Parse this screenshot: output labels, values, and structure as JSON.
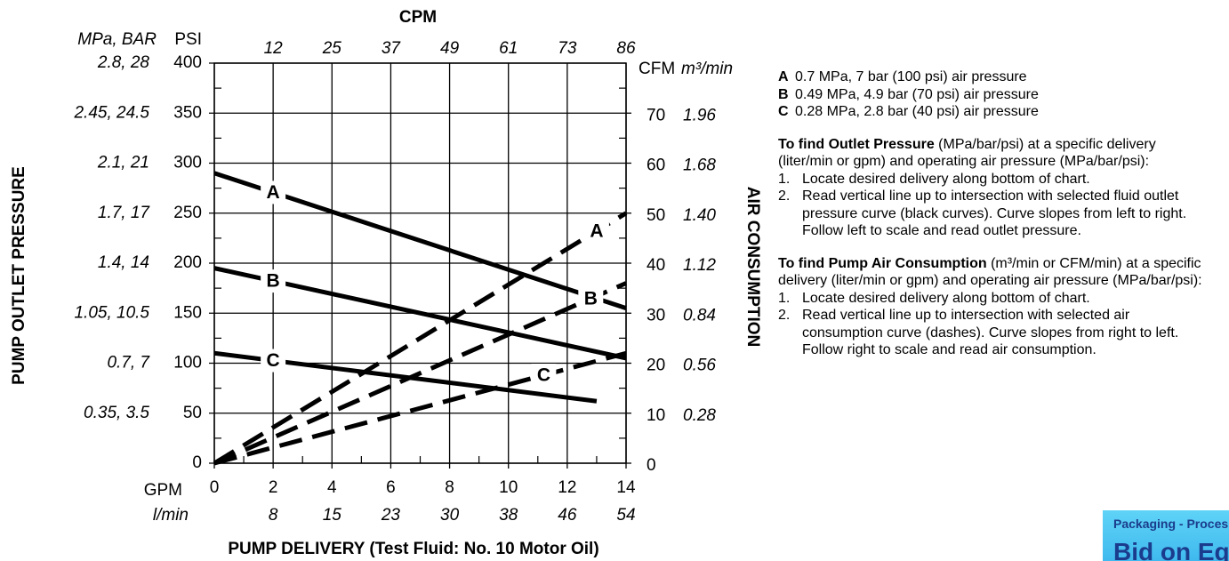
{
  "chart_data": {
    "type": "line",
    "title": "CPM",
    "x_label": "PUMP DELIVERY (Test Fluid: No. 10 Motor Oil)",
    "y_label": "PUMP OUTLET PRESSURE",
    "y2_label": "AIR CONSUMPTION",
    "x_unit": "GPM",
    "x_unit2": "l/min",
    "y_unit": "PSI",
    "y_unit2": "MPa, BAR",
    "y2_unit": "CFM",
    "y2_unit2": "m³/min",
    "xlim": [
      0,
      14
    ],
    "xticks": [
      0,
      2,
      4,
      6,
      8,
      10,
      12,
      14
    ],
    "ylim": [
      0,
      400
    ],
    "yticks": [
      0,
      50,
      100,
      150,
      200,
      250,
      300,
      350,
      400
    ],
    "y2lim": [
      0,
      80
    ],
    "y2ticks": [
      0,
      10,
      20,
      30,
      40,
      50,
      60,
      70
    ],
    "x_top_ticks": [
      {
        "value": 2,
        "label": "12"
      },
      {
        "value": 4,
        "label": "25"
      },
      {
        "value": 6,
        "label": "37"
      },
      {
        "value": 8,
        "label": "49"
      },
      {
        "value": 10,
        "label": "61"
      },
      {
        "value": 12,
        "label": "73"
      },
      {
        "value": 14,
        "label": "86"
      }
    ],
    "x_bottom2_ticks": [
      {
        "value": 2,
        "label": "8"
      },
      {
        "value": 4,
        "label": "15"
      },
      {
        "value": 6,
        "label": "23"
      },
      {
        "value": 8,
        "label": "30"
      },
      {
        "value": 10,
        "label": "38"
      },
      {
        "value": 12,
        "label": "46"
      },
      {
        "value": 14,
        "label": "54"
      }
    ],
    "y_outer_ticks": [
      {
        "value": 50,
        "label": "0.35, 3.5"
      },
      {
        "value": 100,
        "label": "0.7, 7"
      },
      {
        "value": 150,
        "label": "1.05, 10.5"
      },
      {
        "value": 200,
        "label": "1.4, 14"
      },
      {
        "value": 250,
        "label": "1.7, 17"
      },
      {
        "value": 300,
        "label": "2.1, 21"
      },
      {
        "value": 350,
        "label": "2.45, 24.5"
      },
      {
        "value": 400,
        "label": "2.8, 28"
      }
    ],
    "y2_outer_ticks": [
      {
        "value": 10,
        "label": "0.28"
      },
      {
        "value": 20,
        "label": "0.56"
      },
      {
        "value": 30,
        "label": "0.84"
      },
      {
        "value": 40,
        "label": "1.12"
      },
      {
        "value": 50,
        "label": "1.40"
      },
      {
        "value": 60,
        "label": "1.68"
      },
      {
        "value": 70,
        "label": "1.96"
      }
    ],
    "grid": true,
    "series": [
      {
        "name": "A",
        "color": "#000000",
        "dashed": false,
        "x": [
          0,
          14
        ],
        "values": [
          290,
          155
        ]
      },
      {
        "name": "B",
        "color": "#000000",
        "dashed": false,
        "x": [
          0,
          14
        ],
        "values": [
          195,
          105
        ]
      },
      {
        "name": "C",
        "color": "#000000",
        "dashed": false,
        "x": [
          0,
          13
        ],
        "values": [
          110,
          62
        ]
      },
      {
        "name": "A",
        "color": "#000000",
        "dashed": true,
        "axis": "y2",
        "x": [
          0,
          14
        ],
        "values": [
          0,
          50
        ]
      },
      {
        "name": "B",
        "color": "#000000",
        "dashed": true,
        "axis": "y2",
        "x": [
          0,
          14
        ],
        "values": [
          0,
          36
        ]
      },
      {
        "name": "C",
        "color": "#000000",
        "dashed": true,
        "axis": "y2",
        "x": [
          0,
          14
        ],
        "values": [
          0,
          22
        ]
      }
    ]
  },
  "notes": {
    "legend": [
      {
        "key": "A",
        "text": "0.7 MPa, 7 bar (100 psi) air pressure"
      },
      {
        "key": "B",
        "text": "0.49 MPa, 4.9 bar (70 psi) air pressure"
      },
      {
        "key": "C",
        "text": "0.28 MPa, 2.8 bar (40 psi) air pressure"
      }
    ],
    "sections": [
      {
        "heading": "To find Outlet Pressure",
        "intro": " (MPa/bar/psi) at a specific delivery (liter/min or gpm) and operating air pressure (MPa/bar/psi):",
        "steps": [
          {
            "num": "1.",
            "text": "Locate desired delivery along bottom of chart."
          },
          {
            "num": "2.",
            "text": "Read vertical line up to intersection with selected fluid outlet pressure curve (black curves). Curve slopes from left to right. Follow left to scale and read outlet pressure."
          }
        ]
      },
      {
        "heading": "To find Pump Air Consumption",
        "intro": " (m³/min or CFM/min) at a specific delivery (liter/min or gpm) and operating air pressure (MPa/bar/psi):",
        "steps": [
          {
            "num": "1.",
            "text": "Locate desired delivery along bottom of chart."
          },
          {
            "num": "2.",
            "text": "Read vertical line up to intersection with selected air consumption curve (dashes). Curve slopes from right to left. Follow right to scale and read air consumption."
          }
        ]
      }
    ]
  },
  "banner": {
    "line1": "Packaging - Proces",
    "line2": "Bid on Equipm"
  }
}
